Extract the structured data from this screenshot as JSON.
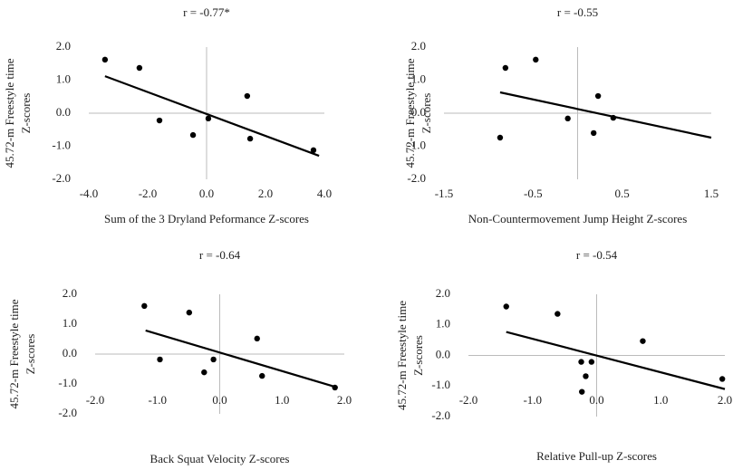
{
  "chart_data": [
    {
      "type": "scatter",
      "title": "r = -0.77*",
      "xlabel": "Sum of the 3 Dryland Peformance Z-scores",
      "ylabel": [
        "45.72-m  Freestyle time",
        "Z-scores"
      ],
      "x": [
        -3.45,
        -2.28,
        -1.6,
        -0.46,
        0.06,
        1.38,
        1.48,
        3.63
      ],
      "values": [
        1.62,
        1.37,
        -0.22,
        -0.66,
        -0.16,
        0.52,
        -0.77,
        -1.12
      ],
      "color": "#000000",
      "trendline": {
        "x": [
          -3.45,
          3.82
        ],
        "y": [
          1.12,
          -1.29
        ]
      },
      "xlim": [
        -4,
        4
      ],
      "ylim": [
        -2,
        2
      ],
      "xticks": [
        {
          "value": -4,
          "label": "-4.0"
        },
        {
          "value": -2,
          "label": "-2.0"
        },
        {
          "value": 0,
          "label": "0.0"
        },
        {
          "value": 2,
          "label": "2.0"
        },
        {
          "value": 4,
          "label": "4.0"
        }
      ],
      "yticks": [
        {
          "value": 2,
          "label": "2.0"
        },
        {
          "value": 1,
          "label": "1.0"
        },
        {
          "value": 0,
          "label": "0.0"
        },
        {
          "value": -1,
          "label": "-1.0"
        },
        {
          "value": -2,
          "label": "-2.0"
        }
      ]
    },
    {
      "type": "scatter",
      "title": "r = -0.55",
      "xlabel": "Non-Countermovement Jump Height Z-scores",
      "ylabel": [
        "45.72-m  Freestyle time",
        "Z-scores"
      ],
      "x": [
        -0.87,
        -0.81,
        -0.47,
        -0.11,
        0.18,
        0.23,
        0.4
      ],
      "values": [
        -0.74,
        1.37,
        1.62,
        -0.16,
        -0.6,
        0.52,
        -0.14
      ],
      "color": "#000000",
      "trendline": {
        "x": [
          -0.87,
          1.5
        ],
        "y": [
          0.63,
          -0.74
        ]
      },
      "xlim": [
        -1.5,
        1.5
      ],
      "ylim": [
        -2,
        2
      ],
      "xticks": [
        -1.5,
        -0.5,
        0.5,
        1.5
      ],
      "yticks": [
        {
          "value": 2,
          "label": "2.0"
        },
        {
          "value": 1,
          "label": "1.0"
        },
        {
          "value": 0,
          "label": "0.0"
        },
        {
          "value": -1,
          "label": "-1.0"
        },
        {
          "value": -2,
          "label": "-2.0"
        }
      ]
    },
    {
      "type": "scatter",
      "title": "r = -0.64",
      "xlabel": "Back Squat Velocity Z-scores",
      "ylabel": [
        "45.72-m  Freestyle time",
        "Z-scores"
      ],
      "x": [
        -1.21,
        -0.96,
        -0.49,
        -0.25,
        -0.1,
        0.6,
        0.68,
        1.85
      ],
      "values": [
        1.61,
        -0.18,
        1.39,
        -0.61,
        -0.18,
        0.52,
        -0.73,
        -1.12
      ],
      "color": "#000000",
      "trendline": {
        "x": [
          -1.19,
          1.89
        ],
        "y": [
          0.79,
          -1.12
        ]
      },
      "xlim": [
        -2,
        2
      ],
      "ylim": [
        -2,
        2
      ],
      "xticks": [
        {
          "value": -2,
          "label": "-2.0"
        },
        {
          "value": -1,
          "label": "-1.0"
        },
        {
          "value": 0,
          "label": "0.0"
        },
        {
          "value": 1,
          "label": "1.0"
        },
        {
          "value": 2,
          "label": "2.0"
        }
      ],
      "yticks": [
        {
          "value": 2,
          "label": "2.0"
        },
        {
          "value": 1,
          "label": "1.0"
        },
        {
          "value": 0,
          "label": "0.0"
        },
        {
          "value": -1,
          "label": "-1.0"
        },
        {
          "value": -2,
          "label": "-2.0"
        }
      ]
    },
    {
      "type": "scatter",
      "title": "r = -0.54",
      "xlabel": "Relative Pull-up Z-scores",
      "ylabel": [
        "45.72-m  Freestyle time",
        "Z-scores"
      ],
      "x": [
        -1.41,
        -0.61,
        -0.24,
        -0.17,
        -0.08,
        -0.23,
        0.72,
        1.96
      ],
      "values": [
        1.6,
        1.36,
        -0.21,
        -0.68,
        -0.21,
        -1.19,
        0.47,
        -0.77
      ],
      "color": "#000000",
      "trendline": {
        "x": [
          -1.41,
          2.0
        ],
        "y": [
          0.77,
          -1.1
        ]
      },
      "xlim": [
        -2,
        2
      ],
      "ylim": [
        -2,
        2
      ],
      "xticks": [
        {
          "value": -2,
          "label": "-2.0"
        },
        {
          "value": -1,
          "label": "-1.0"
        },
        {
          "value": 0,
          "label": "0.0"
        },
        {
          "value": 1,
          "label": "1.0"
        },
        {
          "value": 2,
          "label": "2.0"
        }
      ],
      "yticks": [
        {
          "value": 2,
          "label": "2.0"
        },
        {
          "value": 1,
          "label": "1.0"
        },
        {
          "value": 0,
          "label": "0.0"
        },
        {
          "value": -1,
          "label": "-1.0"
        },
        {
          "value": -2,
          "label": "-2.0"
        }
      ]
    }
  ]
}
